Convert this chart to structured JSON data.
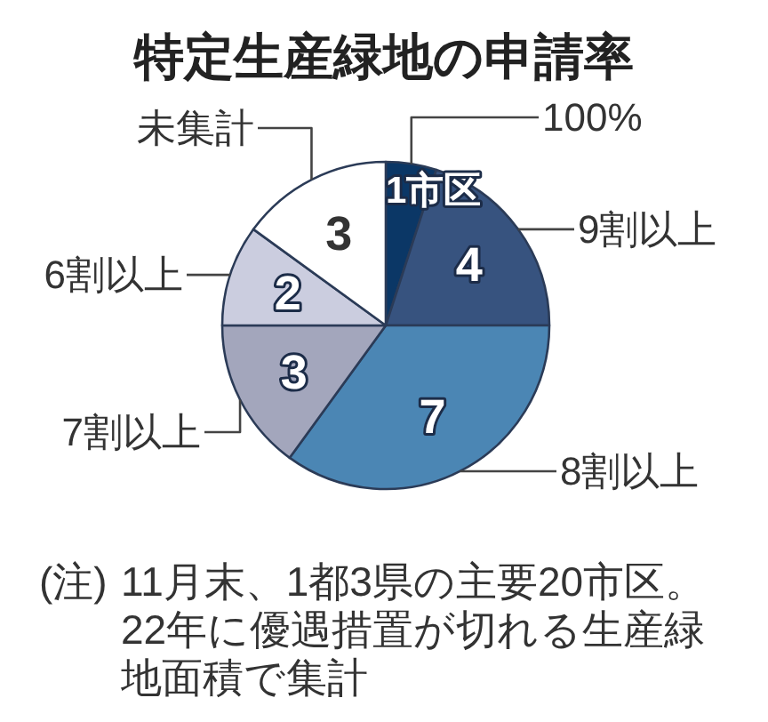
{
  "chart_data": {
    "type": "pie",
    "title": "特定生産緑地の申請率",
    "categories": [
      "100%",
      "9割以上",
      "8割以上",
      "7割以上",
      "6割以上",
      "未集計"
    ],
    "values": [
      1,
      4,
      7,
      3,
      2,
      3
    ],
    "colors": [
      "#0b3766",
      "#37537f",
      "#4b86b4",
      "#a3a6bc",
      "#cbcddf",
      "#ffffff"
    ],
    "value_labels": [
      "1市区",
      "4",
      "7",
      "3",
      "2",
      "3"
    ],
    "annotations": [
      "(注)",
      "11月末、1都3県の主要20市区。22年に優遇措置が切れる生産緑地面積で集計"
    ]
  }
}
